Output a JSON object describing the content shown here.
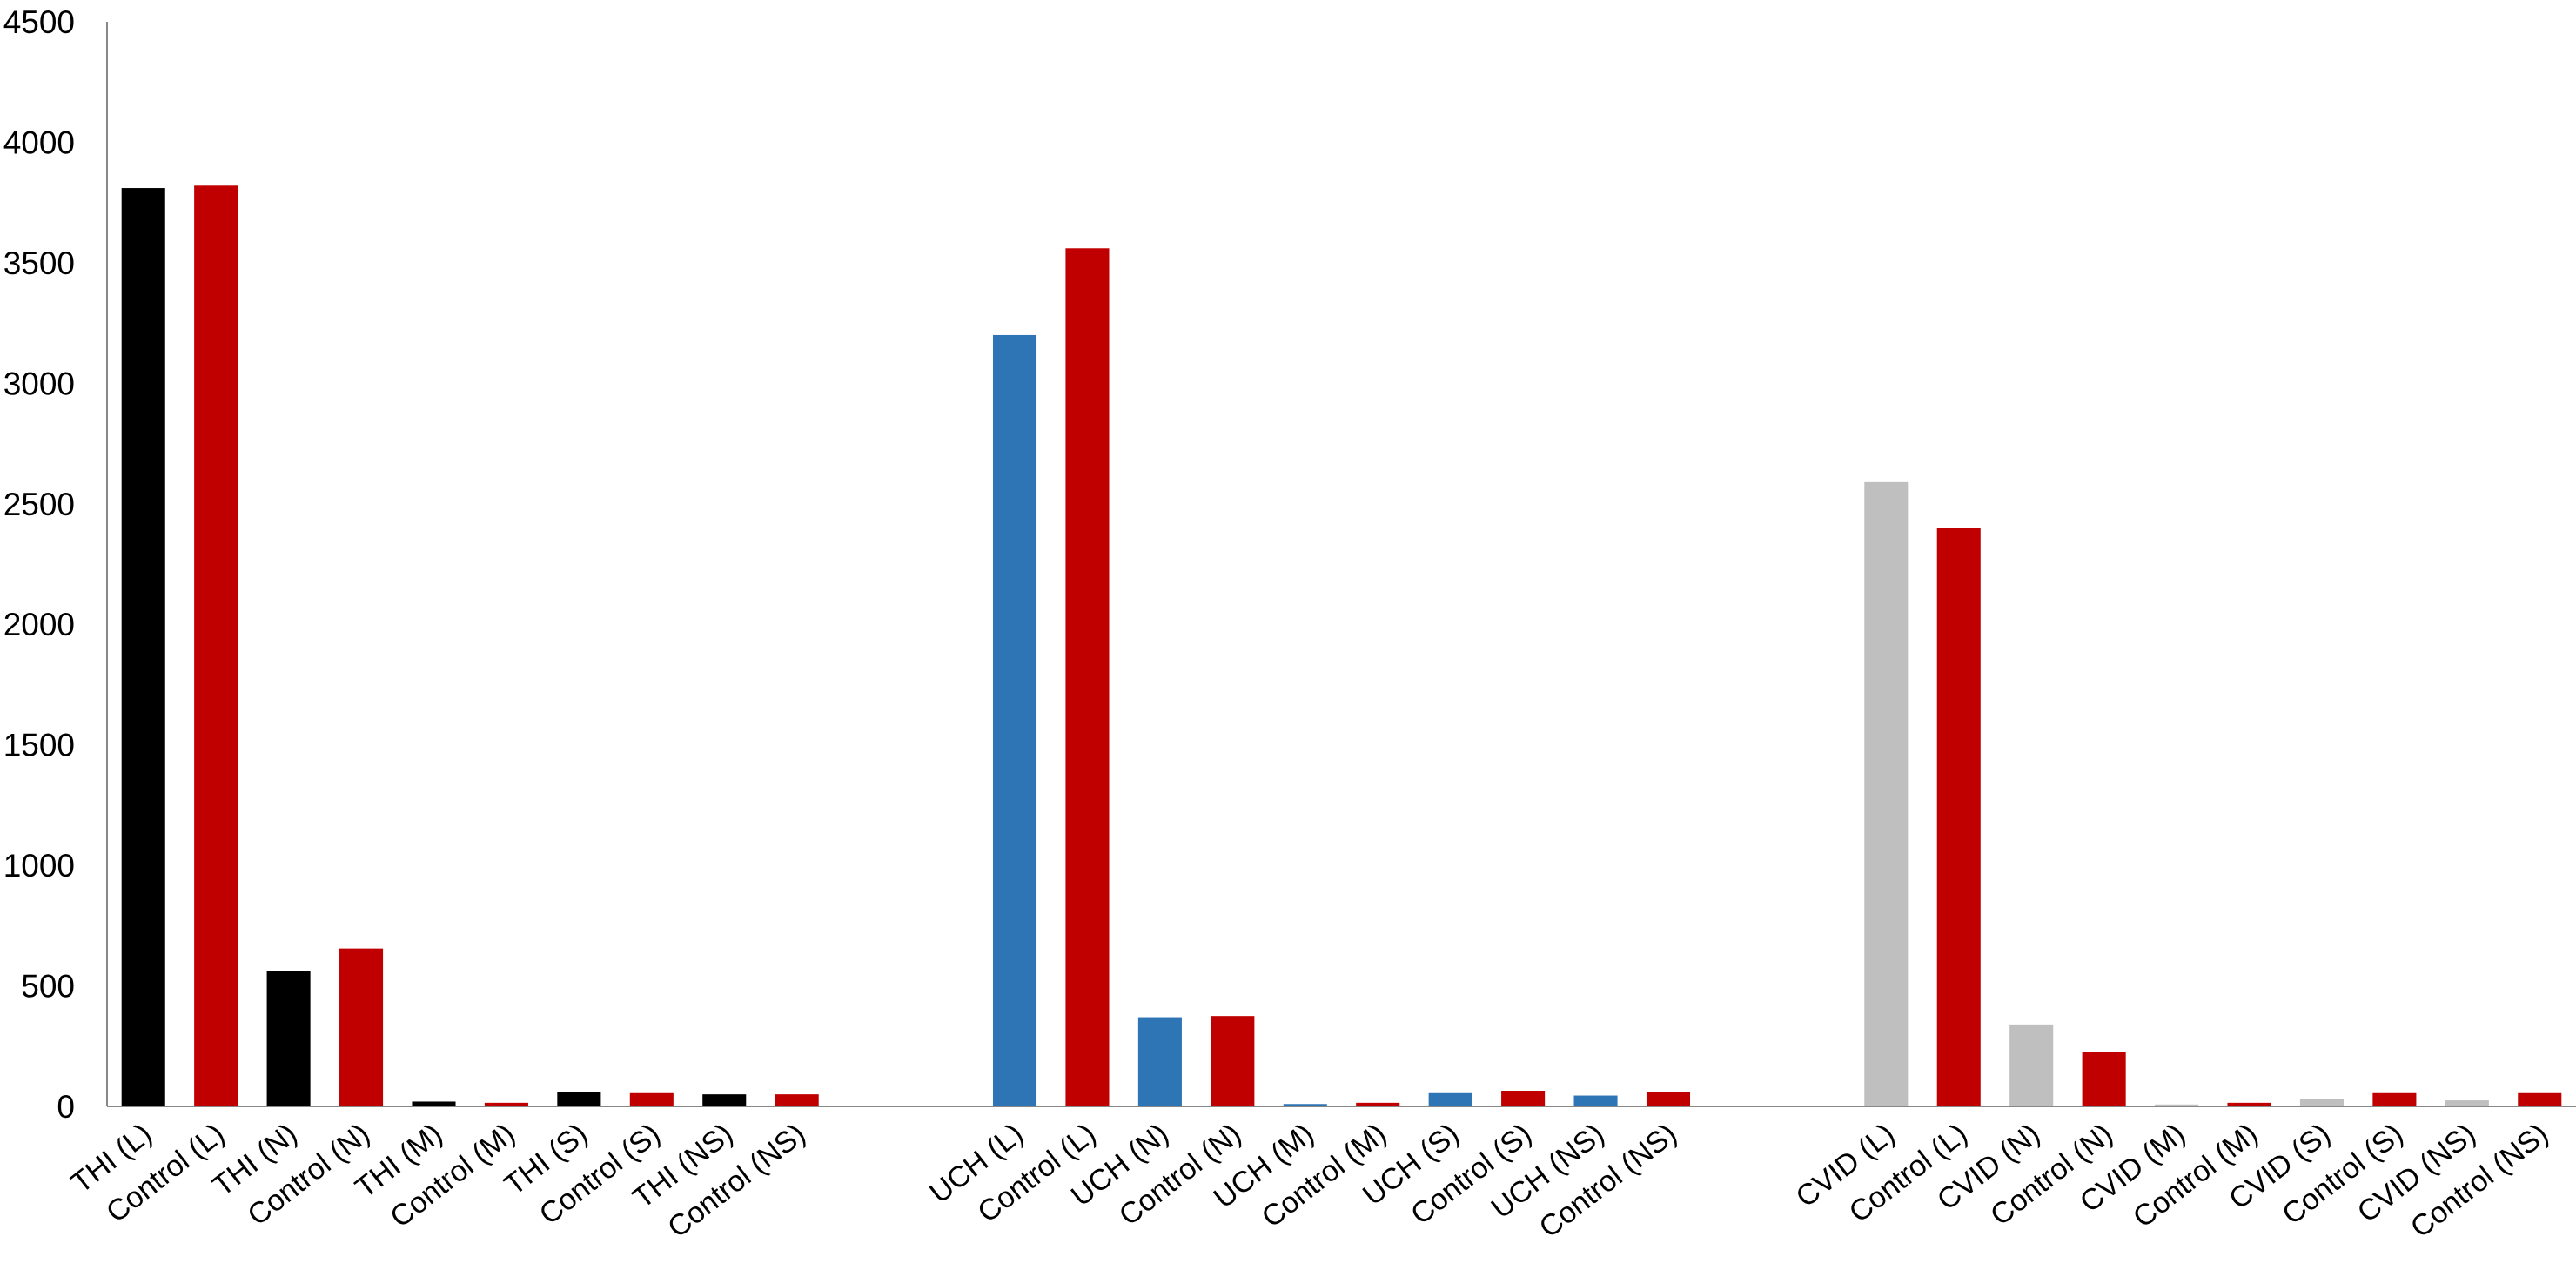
{
  "chart_data": {
    "type": "bar",
    "categories": [
      "THI (L)",
      "Control (L)",
      "THI (N)",
      "Control (N)",
      "THI (M)",
      "Control (M)",
      "THI (S)",
      "Control (S)",
      "THI (NS)",
      "Control (NS)",
      null,
      null,
      "UCH (L)",
      "Control (L)",
      "UCH (N)",
      "Control (N)",
      "UCH (M)",
      "Control (M)",
      "UCH (S)",
      "Control (S)",
      "UCH (NS)",
      "Control (NS)",
      null,
      null,
      "CVID (L)",
      "Control (L)",
      "CVID (N)",
      "Control (N)",
      "CVID (M)",
      "Control (M)",
      "CVID (S)",
      "Control (S)",
      "CVID (NS)",
      "Control (NS)"
    ],
    "values": [
      3810,
      3820,
      560,
      655,
      20,
      15,
      60,
      55,
      50,
      50,
      null,
      null,
      3200,
      3560,
      370,
      375,
      10,
      15,
      55,
      65,
      45,
      60,
      null,
      null,
      2590,
      2400,
      340,
      225,
      8,
      15,
      30,
      55,
      25,
      55
    ],
    "colors": [
      "#000000",
      "#c00000",
      "#000000",
      "#c00000",
      "#000000",
      "#c00000",
      "#000000",
      "#c00000",
      "#000000",
      "#c00000",
      null,
      null,
      "#2e75b6",
      "#c00000",
      "#2e75b6",
      "#c00000",
      "#2e75b6",
      "#c00000",
      "#2e75b6",
      "#c00000",
      "#2e75b6",
      "#c00000",
      null,
      null,
      "#bfbfbf",
      "#c00000",
      "#bfbfbf",
      "#c00000",
      "#bfbfbf",
      "#c00000",
      "#bfbfbf",
      "#c00000",
      "#bfbfbf",
      "#c00000"
    ],
    "ylim": [
      0,
      4500
    ],
    "yticks": [
      0,
      500,
      1000,
      1500,
      2000,
      2500,
      3000,
      3500,
      4000,
      4500
    ],
    "grid": false
  }
}
